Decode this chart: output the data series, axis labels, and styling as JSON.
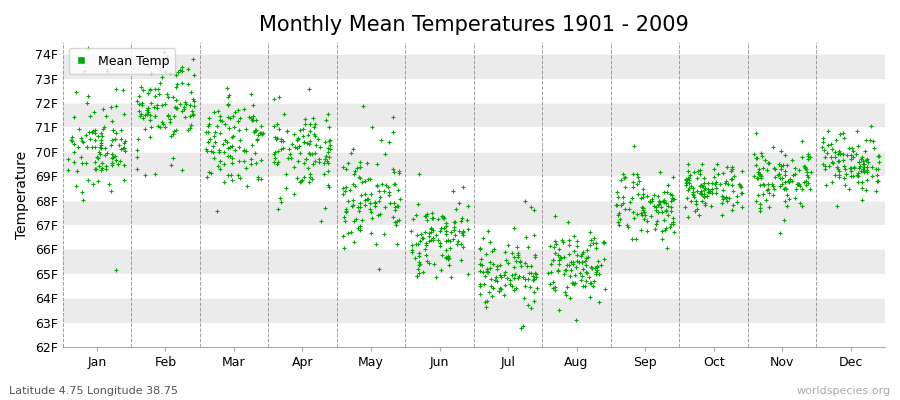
{
  "title": "Monthly Mean Temperatures 1901 - 2009",
  "ylabel": "Temperature",
  "xlabel_labels": [
    "Jan",
    "Feb",
    "Mar",
    "Apr",
    "May",
    "Jun",
    "Jul",
    "Aug",
    "Sep",
    "Oct",
    "Nov",
    "Dec"
  ],
  "ytick_labels": [
    "62F",
    "63F",
    "64F",
    "65F",
    "66F",
    "67F",
    "68F",
    "69F",
    "70F",
    "71F",
    "72F",
    "73F",
    "74F"
  ],
  "ytick_values": [
    62,
    63,
    64,
    65,
    66,
    67,
    68,
    69,
    70,
    71,
    72,
    73,
    74
  ],
  "ylim": [
    62,
    74.5
  ],
  "dot_color": "#00aa00",
  "background_color": "#ffffff",
  "plot_bg_light": "#ffffff",
  "plot_bg_dark": "#ebebeb",
  "legend_label": "Mean Temp",
  "subtitle": "Latitude 4.75 Longitude 38.75",
  "watermark": "worldspecies.org",
  "title_fontsize": 15,
  "label_fontsize": 10,
  "tick_fontsize": 9,
  "monthly_means": [
    70.1,
    71.8,
    70.5,
    70.0,
    68.2,
    66.5,
    65.2,
    65.3,
    67.8,
    68.6,
    69.0,
    69.5
  ],
  "monthly_stds": [
    0.7,
    0.85,
    0.8,
    0.75,
    0.85,
    0.75,
    0.65,
    0.7,
    0.55,
    0.5,
    0.55,
    0.55
  ],
  "monthly_extra_spread": [
    1.5,
    1.6,
    1.5,
    1.3,
    1.2,
    1.0,
    0.9,
    0.9,
    0.7,
    0.6,
    0.6,
    0.7
  ],
  "n_years": 109,
  "seed": 17
}
